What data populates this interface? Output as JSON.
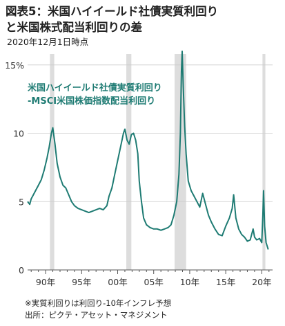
{
  "header": {
    "title_line1": "図表5：米国ハイイールド社債実質利回り",
    "title_line2": "と米国株式配当利回りの差",
    "subtitle": "2020年12月1日時点"
  },
  "footer": {
    "note": "※実質利回りは利回り-10年インフレ予想",
    "source": "出所：ピクテ・アセット・マネジメント"
  },
  "colors": {
    "line": "#1e7b73",
    "band": "#dddddd",
    "grid": "#cccccc"
  },
  "chart_data": {
    "type": "line",
    "title": "図表5：米国ハイイールド社債実質利回りと米国株式配当利回りの差",
    "subtitle": "2020年12月1日時点",
    "x_axis": {
      "range": [
        1987.5,
        2021.5
      ],
      "ticks": [
        1990,
        1995,
        2000,
        2005,
        2010,
        2015,
        2020
      ],
      "tick_labels": [
        "90年",
        "95年",
        "00年",
        "05年",
        "10年",
        "15年",
        "20年"
      ]
    },
    "y_axis": {
      "range": [
        0,
        15.8
      ],
      "ticks": [
        0,
        5,
        10,
        15
      ],
      "tick_labels": [
        "0",
        "5",
        "10",
        "15%"
      ]
    },
    "grid": true,
    "legend": {
      "placement": "top-left",
      "text_line1": "米国ハイイールド社債実質利回り",
      "text_line2": "-MSCI米国株価指数配当利回り"
    },
    "shaded_periods": [
      [
        1990.6,
        1991.2
      ],
      [
        2001.2,
        2001.9
      ],
      [
        2007.9,
        2009.5
      ],
      [
        2020.1,
        2020.5
      ]
    ],
    "series": [
      {
        "x": [
          1987.5,
          1987.8,
          1988.0,
          1988.3,
          1988.6,
          1989.0,
          1989.4,
          1989.8,
          1990.2,
          1990.5,
          1990.8,
          1991.0,
          1991.3,
          1991.6,
          1992.0,
          1992.4,
          1992.8,
          1993.2,
          1993.6,
          1994.0,
          1994.5,
          1995.0,
          1995.5,
          1996.0,
          1996.5,
          1997.0,
          1997.5,
          1998.0,
          1998.5,
          1998.8,
          1999.2,
          1999.6,
          2000.0,
          2000.4,
          2000.8,
          2001.0,
          2001.3,
          2001.6,
          2001.9,
          2002.2,
          2002.5,
          2002.8,
          2003.0,
          2003.3,
          2003.6,
          2004.0,
          2004.5,
          2005.0,
          2005.5,
          2006.0,
          2006.5,
          2007.0,
          2007.4,
          2007.8,
          2008.2,
          2008.5,
          2008.7,
          2008.85,
          2008.95,
          2009.1,
          2009.3,
          2009.5,
          2009.8,
          2010.2,
          2010.6,
          2011.0,
          2011.4,
          2011.8,
          2012.2,
          2012.6,
          2013.0,
          2013.5,
          2014.0,
          2014.5,
          2015.0,
          2015.5,
          2015.9,
          2016.1,
          2016.4,
          2016.8,
          2017.2,
          2017.6,
          2018.0,
          2018.4,
          2018.8,
          2019.0,
          2019.3,
          2019.7,
          2020.0,
          2020.15,
          2020.25,
          2020.4,
          2020.6,
          2020.9
        ],
        "y": [
          5.0,
          4.8,
          5.2,
          5.5,
          5.8,
          6.2,
          6.6,
          7.3,
          8.2,
          9.0,
          10.0,
          10.4,
          9.2,
          7.8,
          6.8,
          6.2,
          6.0,
          5.5,
          5.0,
          4.7,
          4.5,
          4.4,
          4.3,
          4.2,
          4.3,
          4.4,
          4.5,
          4.4,
          4.7,
          5.4,
          6.0,
          7.0,
          8.0,
          9.0,
          10.0,
          10.3,
          9.5,
          9.2,
          9.9,
          10.0,
          9.5,
          8.5,
          6.5,
          5.0,
          3.8,
          3.3,
          3.1,
          3.0,
          3.0,
          2.9,
          3.0,
          3.1,
          3.3,
          4.0,
          5.0,
          7.0,
          10.0,
          14.5,
          16.0,
          13.5,
          10.5,
          8.5,
          6.5,
          5.8,
          5.4,
          5.0,
          4.6,
          5.6,
          4.8,
          4.0,
          3.5,
          3.0,
          2.6,
          2.5,
          3.2,
          3.8,
          4.5,
          5.5,
          3.8,
          3.0,
          2.6,
          2.4,
          2.1,
          2.2,
          3.0,
          2.4,
          2.2,
          2.3,
          2.0,
          4.0,
          5.8,
          3.2,
          2.0,
          1.5
        ]
      }
    ]
  }
}
